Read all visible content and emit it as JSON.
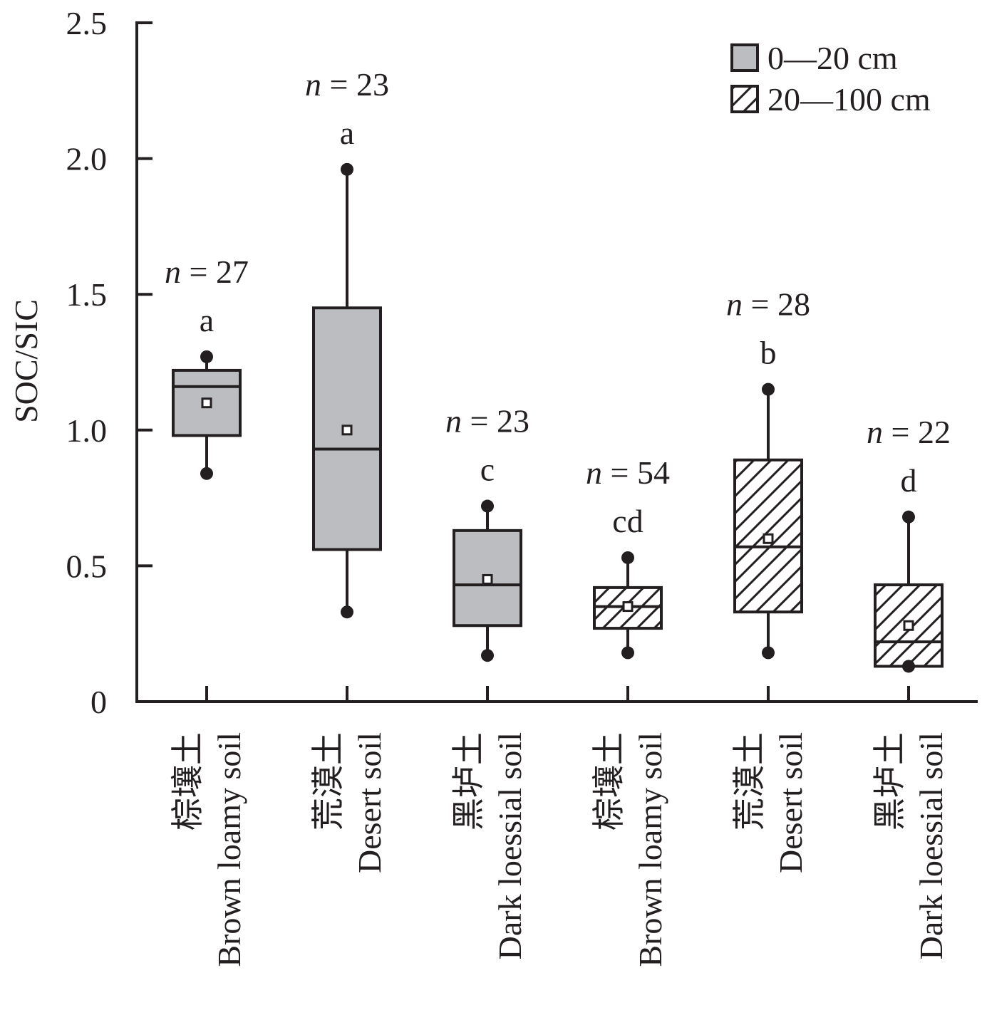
{
  "chart_data": {
    "type": "boxplot",
    "ylabel": "SOC/SIC",
    "ylim": [
      0,
      2.5
    ],
    "yticks": [
      "0",
      "0.5",
      "1.0",
      "1.5",
      "2.0",
      "2.5"
    ],
    "ytick_values": [
      0,
      0.5,
      1.0,
      1.5,
      2.0,
      2.5
    ],
    "legend_position": "top-right",
    "legend": [
      {
        "label": "0—20 cm",
        "fill": "gray"
      },
      {
        "label": "20—100 cm",
        "fill": "hatched"
      }
    ],
    "boxes": [
      {
        "label_cn": "棕壤土",
        "label_en": "Brown loamy soil",
        "layer": "0—20 cm",
        "n_label": "= 27",
        "letter": "a",
        "whisker_low": 0.84,
        "q1": 0.98,
        "median": 1.16,
        "q3": 1.22,
        "whisker_high": 1.27,
        "mean": 1.1
      },
      {
        "label_cn": "荒漠土",
        "label_en": "Desert soil",
        "layer": "0—20 cm",
        "n_label": "= 23",
        "letter": "a",
        "whisker_low": 0.33,
        "q1": 0.56,
        "median": 0.93,
        "q3": 1.45,
        "whisker_high": 1.96,
        "mean": 1.0
      },
      {
        "label_cn": "黑垆土",
        "label_en": "Dark loessial soil",
        "layer": "0—20 cm",
        "n_label": "= 23",
        "letter": "c",
        "whisker_low": 0.17,
        "q1": 0.28,
        "median": 0.43,
        "q3": 0.63,
        "whisker_high": 0.72,
        "mean": 0.45
      },
      {
        "label_cn": "棕壤土",
        "label_en": "Brown loamy soil",
        "layer": "20—100 cm",
        "n_label": "= 54",
        "letter": "cd",
        "whisker_low": 0.18,
        "q1": 0.27,
        "median": 0.35,
        "q3": 0.42,
        "whisker_high": 0.53,
        "mean": 0.35
      },
      {
        "label_cn": "荒漠土",
        "label_en": "Desert soil",
        "layer": "20—100 cm",
        "n_label": "= 28",
        "letter": "b",
        "whisker_low": 0.18,
        "q1": 0.33,
        "median": 0.57,
        "q3": 0.89,
        "whisker_high": 1.15,
        "mean": 0.6
      },
      {
        "label_cn": "黑垆土",
        "label_en": "Dark loessial soil",
        "layer": "20—100 cm",
        "n_label": "= 22",
        "letter": "d",
        "whisker_low": 0.13,
        "q1": 0.13,
        "median": 0.22,
        "q3": 0.43,
        "whisker_high": 0.68,
        "mean": 0.28
      }
    ]
  },
  "colors": {
    "ink": "#231f20",
    "box_fill": "#bcbdc0",
    "hatch_fill": "#ffffff"
  }
}
